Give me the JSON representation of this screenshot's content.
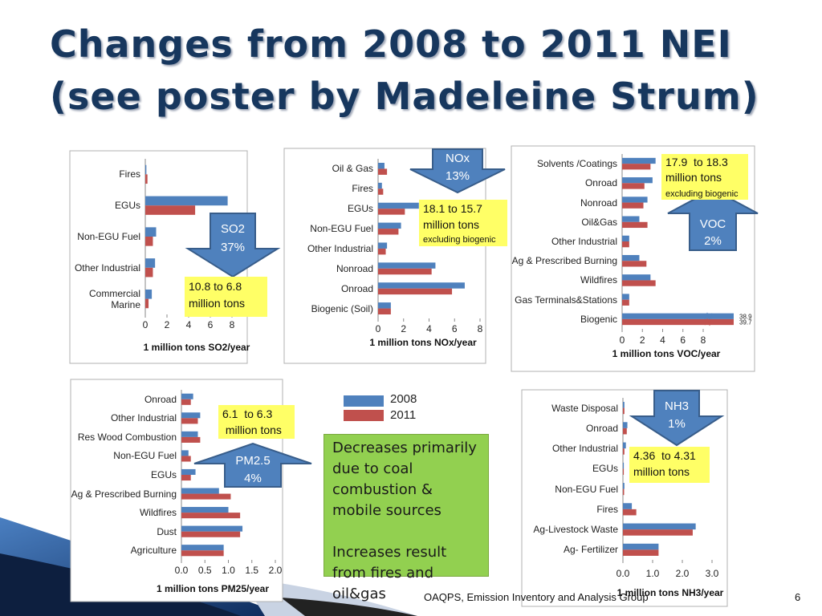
{
  "title": [
    "Changes from 2008 to 2011 NEI",
    "(see poster by Madeleine Strum)"
  ],
  "chart_data": [
    {
      "type": "bar",
      "orientation": "horizontal",
      "xlabel": "1 million tons SO2/year",
      "categories": [
        "Fires",
        "EGUs",
        "Non-EGU Fuel",
        "Other Industrial",
        "Commercial Marine"
      ],
      "series": [
        {
          "name": "2008",
          "color": "#4f81bd",
          "values": [
            0.1,
            7.6,
            1.0,
            0.9,
            0.6
          ]
        },
        {
          "name": "2011",
          "color": "#c0504d",
          "values": [
            0.2,
            4.6,
            0.7,
            0.7,
            0.3
          ]
        }
      ],
      "xlim": [
        0,
        8
      ],
      "xticks": [
        0,
        2,
        4,
        6,
        8
      ],
      "arrow_text": [
        "SO2",
        "37%"
      ],
      "box_text": [
        "10.8 to 6.8",
        "million tons"
      ]
    },
    {
      "type": "bar",
      "orientation": "horizontal",
      "xlabel": "1 million tons NOx/year",
      "categories": [
        "Oil & Gas",
        "Fires",
        "EGUs",
        "Non-EGU Fuel",
        "Other Industrial",
        "Nonroad",
        "Onroad",
        "Biogenic (Soil)"
      ],
      "series": [
        {
          "name": "2008",
          "color": "#4f81bd",
          "values": [
            0.5,
            0.3,
            3.2,
            1.8,
            0.7,
            4.5,
            6.8,
            1.0
          ]
        },
        {
          "name": "2011",
          "color": "#c0504d",
          "values": [
            0.7,
            0.4,
            2.1,
            1.6,
            0.6,
            4.2,
            5.8,
            1.0
          ]
        }
      ],
      "xlim": [
        0,
        8
      ],
      "xticks": [
        0,
        2,
        4,
        6,
        8
      ],
      "arrow_text": [
        "NOx",
        "13%"
      ],
      "box_text": [
        "18.1 to 15.7",
        "million tons",
        "excluding biogenic"
      ]
    },
    {
      "type": "bar",
      "orientation": "horizontal",
      "xlabel": "1 million tons VOC/year",
      "categories": [
        "Solvents /Coatings",
        "Onroad",
        "Nonroad",
        "Oil&Gas",
        "Other Industrial",
        "Ag & Prescribed Burning",
        "Wildfires",
        "Gas Terminals&Stations",
        "Biogenic"
      ],
      "series": [
        {
          "name": "2008",
          "color": "#4f81bd",
          "values": [
            3.3,
            3.0,
            2.5,
            1.7,
            0.7,
            1.7,
            2.8,
            0.7,
            38.9
          ],
          "value_labels": [
            null,
            null,
            null,
            null,
            null,
            null,
            null,
            null,
            "38.9"
          ]
        },
        {
          "name": "2011",
          "color": "#c0504d",
          "values": [
            2.8,
            2.2,
            2.1,
            2.5,
            0.7,
            2.4,
            3.3,
            0.7,
            39.7
          ],
          "value_labels": [
            null,
            null,
            null,
            null,
            null,
            null,
            null,
            null,
            "39.7"
          ]
        }
      ],
      "xlim": [
        0,
        8
      ],
      "xticks": [
        0,
        2,
        4,
        6,
        8
      ],
      "axis_break": true,
      "arrow_text": [
        "VOC",
        "2%"
      ],
      "box_text": [
        "17.9  to 18.3",
        "million tons",
        "excluding biogenic"
      ]
    },
    {
      "type": "bar",
      "orientation": "horizontal",
      "xlabel": "1 million tons PM25/year",
      "categories": [
        "Onroad",
        "Other Industrial",
        "Res Wood Combustion",
        "Non-EGU Fuel",
        "EGUs",
        "Ag & Prescribed Burning",
        "Wildfires",
        "Dust",
        "Agriculture"
      ],
      "series": [
        {
          "name": "2008",
          "color": "#4f81bd",
          "values": [
            0.25,
            0.4,
            0.35,
            0.15,
            0.3,
            0.8,
            1.0,
            1.3,
            0.9
          ]
        },
        {
          "name": "2011",
          "color": "#c0504d",
          "values": [
            0.2,
            0.35,
            0.4,
            0.2,
            0.2,
            1.05,
            1.25,
            1.25,
            0.9
          ]
        }
      ],
      "xlim": [
        0,
        2
      ],
      "xticks": [
        {
          "value": 0,
          "label": "0.0"
        },
        0.5,
        {
          "value": 1,
          "label": "1.0"
        },
        1.5,
        {
          "value": 2,
          "label": "2.0"
        }
      ],
      "arrow_text": [
        "PM2.5",
        "4%"
      ],
      "box_text": [
        "6.1  to 6.3",
        " million tons"
      ]
    },
    {
      "type": "bar",
      "orientation": "horizontal",
      "xlabel": "1 million tons NH3/year",
      "categories": [
        "Waste Disposal",
        "Onroad",
        "Other Industrial",
        "EGUs",
        "Non-EGU Fuel",
        "Fires",
        "Ag-Livestock Waste",
        "Ag- Fertilizer"
      ],
      "series": [
        {
          "name": "2008",
          "color": "#4f81bd",
          "values": [
            0.05,
            0.15,
            0.1,
            0.03,
            0.05,
            0.3,
            2.45,
            1.2
          ]
        },
        {
          "name": "2011",
          "color": "#c0504d",
          "values": [
            0.05,
            0.13,
            0.05,
            0.03,
            0.04,
            0.45,
            2.35,
            1.2
          ]
        }
      ],
      "xlim": [
        0,
        3
      ],
      "xticks": [
        {
          "value": 0,
          "label": "0.0"
        },
        {
          "value": 1,
          "label": "1.0"
        },
        {
          "value": 2,
          "label": "2.0"
        },
        {
          "value": 3,
          "label": "3.0"
        }
      ],
      "arrow_text": [
        "NH3",
        "1%"
      ],
      "box_text": [
        "4.36  to 4.31",
        "million tons"
      ]
    }
  ],
  "summary": [
    "Decreases primarily due to coal combustion & mobile sources",
    "Increases result from fires and oil&gas"
  ],
  "footer": "OAQPS, Emission Inventory and Analysis Group",
  "page_number": 6
}
